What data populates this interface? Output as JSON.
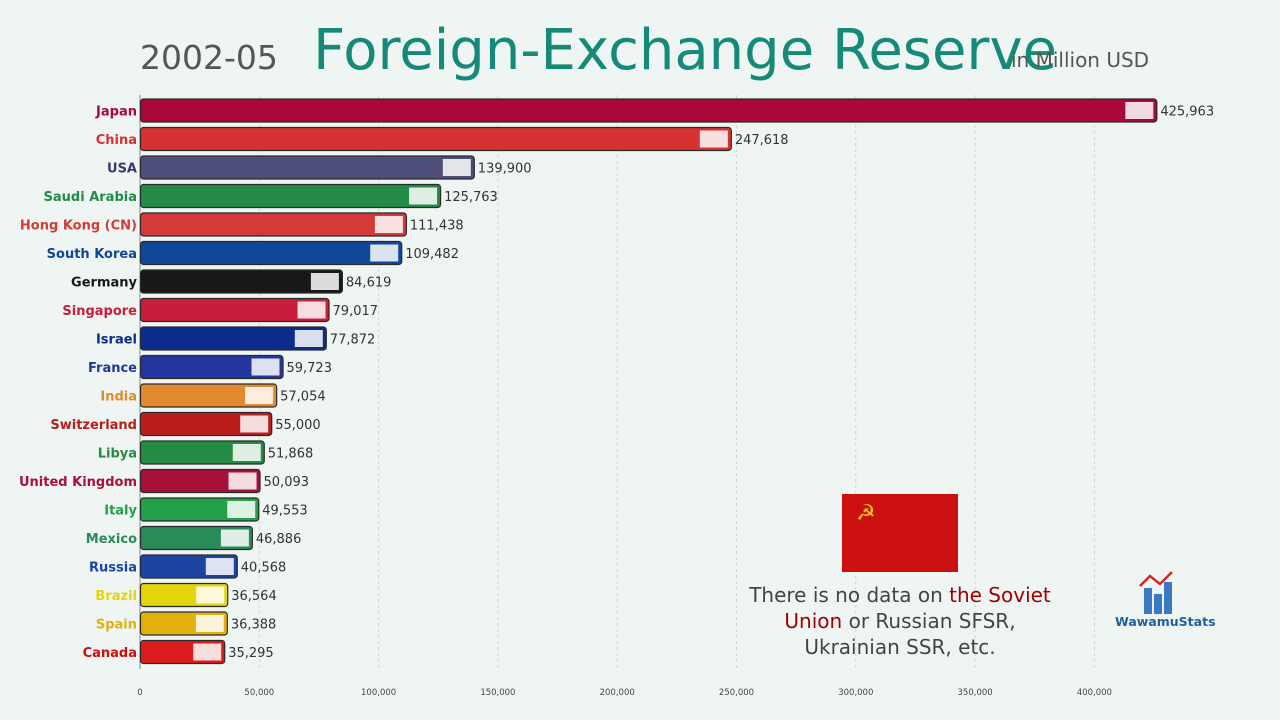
{
  "header": {
    "date": "2002-05",
    "title": "Foreign-Exchange Reserve",
    "unit": "in Million USD"
  },
  "chart_data": {
    "type": "bar",
    "orientation": "horizontal",
    "title": "Foreign-Exchange Reserve",
    "xlim": [
      0,
      440000
    ],
    "xticks": [
      0,
      50000,
      100000,
      150000,
      200000,
      250000,
      300000,
      350000,
      400000
    ],
    "grid": true,
    "categories": [
      "Japan",
      "China",
      "USA",
      "Saudi Arabia",
      "Hong Kong (CN)",
      "South Korea",
      "Germany",
      "Singapore",
      "Israel",
      "France",
      "India",
      "Switzerland",
      "Libya",
      "United Kingdom",
      "Italy",
      "Mexico",
      "Russia",
      "Brazil",
      "Spain",
      "Canada"
    ],
    "values": [
      425963,
      247618,
      139900,
      125763,
      111438,
      109482,
      84619,
      79017,
      77872,
      59723,
      57054,
      55000,
      51868,
      50093,
      49553,
      46886,
      40568,
      36564,
      36388,
      35295
    ],
    "value_labels": [
      "425,963",
      "247,618",
      "139,900",
      "125,763",
      "111,438",
      "109,482",
      "84,619",
      "79,017",
      "77,872",
      "59,723",
      "57,054",
      "55,000",
      "51,868",
      "50,093",
      "49,553",
      "46,886",
      "40,568",
      "36,564",
      "36,388",
      "35,295"
    ],
    "tick_labels": [
      "0",
      "50,000",
      "100,000",
      "150,000",
      "200,000",
      "250,000",
      "300,000",
      "350,000",
      "400,000"
    ],
    "bar_colors": [
      "#a8083a",
      "#d63232",
      "#4e4e7a",
      "#248a48",
      "#d33a3a",
      "#11479a",
      "#181818",
      "#c81d3b",
      "#0c2c8c",
      "#2336a0",
      "#e38a30",
      "#b81c1c",
      "#268a44",
      "#a8103a",
      "#22a04a",
      "#2a8a5a",
      "#1c44a0",
      "#e4d40c",
      "#e4b00c",
      "#dc1c1c"
    ],
    "label_colors": [
      "#a8083a",
      "#d63232",
      "#3a3a6a",
      "#248a48",
      "#d33a3a",
      "#11479a",
      "#181818",
      "#c81d3b",
      "#0c2c8c",
      "#2336a0",
      "#e38a30",
      "#b81c1c",
      "#268a44",
      "#a8103a",
      "#22a04a",
      "#2a8a5a",
      "#1c44a0",
      "#e4d40c",
      "#e4b00c",
      "#c81010"
    ]
  },
  "note": {
    "part1": "There is no data on ",
    "highlight": "the Soviet Union",
    "part2": " or Russian SFSR, Ukrainian SSR, etc.",
    "flag_symbol": "☭"
  },
  "logo": {
    "text": "WawamuStats"
  }
}
